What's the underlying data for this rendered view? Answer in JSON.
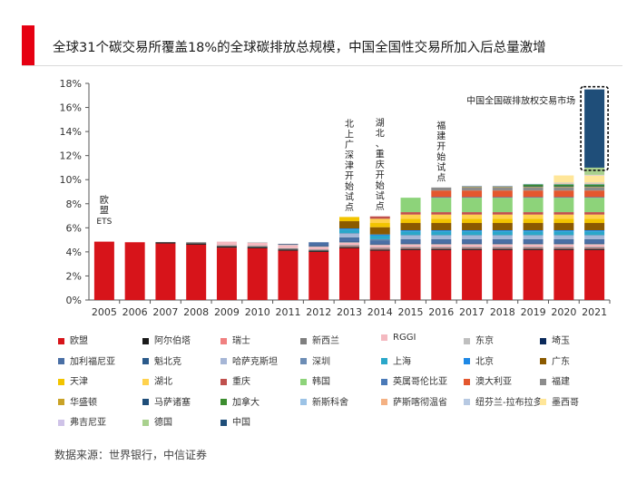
{
  "title": "全球31个碳交易所覆盖18%的全球碳排放总规模，中国全国性交易所加入后总量激增",
  "source": "数据来源：世界银行，中信证券",
  "chart_data": {
    "type": "bar",
    "stacked": true,
    "categories": [
      "2005",
      "2006",
      "2007",
      "2008",
      "2009",
      "2010",
      "2011",
      "2012",
      "2013",
      "2014",
      "2015",
      "2016",
      "2017",
      "2018",
      "2019",
      "2020",
      "2021"
    ],
    "yticks": [
      "0%",
      "2%",
      "4%",
      "6%",
      "8%",
      "10%",
      "12%",
      "14%",
      "16%",
      "18%"
    ],
    "ylim": [
      0,
      18
    ],
    "annotations": [
      {
        "year": "2005",
        "text": "欧盟ETS"
      },
      {
        "year": "2013",
        "text": "北上广深津开始试点"
      },
      {
        "year": "2014",
        "text": "湖北、重庆开始试点"
      },
      {
        "year": "2016",
        "text": "福建开始试点"
      },
      {
        "year": "2021",
        "text": "中国全国碳排放权交易市场"
      }
    ],
    "series": [
      {
        "name": "欧盟",
        "color": "#d7141a",
        "values": [
          4.85,
          4.8,
          4.7,
          4.6,
          4.35,
          4.3,
          4.1,
          4.0,
          4.3,
          4.1,
          4.15,
          4.15,
          4.15,
          4.15,
          4.15,
          4.15,
          4.15
        ]
      },
      {
        "name": "阿尔伯塔",
        "color": "#1a1a1a",
        "values": [
          0,
          0,
          0.1,
          0.1,
          0.1,
          0.1,
          0.1,
          0.1,
          0.1,
          0.1,
          0.1,
          0.1,
          0.1,
          0.1,
          0.1,
          0.1,
          0.1
        ]
      },
      {
        "name": "瑞士",
        "color": "#f08080",
        "values": [
          0,
          0,
          0,
          0,
          0,
          0,
          0,
          0,
          0.05,
          0.05,
          0.05,
          0.05,
          0.05,
          0.05,
          0.05,
          0.05,
          0.05
        ]
      },
      {
        "name": "新西兰",
        "color": "#7f7f7f",
        "values": [
          0,
          0,
          0,
          0.1,
          0.1,
          0.1,
          0.1,
          0.1,
          0.1,
          0.1,
          0.1,
          0.1,
          0.1,
          0.1,
          0.1,
          0.1,
          0.1
        ]
      },
      {
        "name": "RGGI",
        "color": "#f4b9c0",
        "values": [
          0,
          0,
          0,
          0,
          0.3,
          0.25,
          0.25,
          0.2,
          0.2,
          0.2,
          0.2,
          0.2,
          0.2,
          0.2,
          0.2,
          0.2,
          0.2
        ]
      },
      {
        "name": "东京",
        "color": "#bfbfbf",
        "values": [
          0,
          0,
          0,
          0,
          0,
          0.05,
          0.05,
          0.05,
          0.05,
          0.05,
          0.05,
          0.05,
          0.05,
          0.05,
          0.05,
          0.05,
          0.05
        ]
      },
      {
        "name": "埼玉",
        "color": "#0b2a5b",
        "values": [
          0,
          0,
          0,
          0,
          0,
          0,
          0.05,
          0.05,
          0.05,
          0.05,
          0.05,
          0.05,
          0.05,
          0.05,
          0.05,
          0.05,
          0.05
        ]
      },
      {
        "name": "加利福尼亚",
        "color": "#4a6fa5",
        "values": [
          0,
          0,
          0,
          0,
          0,
          0,
          0,
          0.3,
          0.3,
          0.3,
          0.3,
          0.3,
          0.3,
          0.3,
          0.3,
          0.3,
          0.3
        ]
      },
      {
        "name": "魁北克",
        "color": "#2b5a8a",
        "values": [
          0,
          0,
          0,
          0,
          0,
          0,
          0,
          0,
          0.05,
          0.05,
          0.05,
          0.05,
          0.05,
          0.05,
          0.05,
          0.05,
          0.05
        ]
      },
      {
        "name": "哈萨克斯坦",
        "color": "#a6b6d6",
        "values": [
          0,
          0,
          0,
          0,
          0,
          0,
          0,
          0,
          0.3,
          0,
          0.3,
          0.3,
          0.3,
          0.3,
          0.3,
          0.3,
          0.3
        ]
      },
      {
        "name": "深圳",
        "color": "#6d8db5",
        "values": [
          0,
          0,
          0,
          0,
          0,
          0,
          0,
          0,
          0.05,
          0.05,
          0.05,
          0.05,
          0.05,
          0.05,
          0.05,
          0.05,
          0.05
        ]
      },
      {
        "name": "上海",
        "color": "#2aa7c9",
        "values": [
          0,
          0,
          0,
          0,
          0,
          0,
          0,
          0,
          0.3,
          0.3,
          0.3,
          0.3,
          0.3,
          0.3,
          0.3,
          0.3,
          0.3
        ]
      },
      {
        "name": "北京",
        "color": "#1e88e5",
        "values": [
          0,
          0,
          0,
          0,
          0,
          0,
          0,
          0,
          0.1,
          0.1,
          0.1,
          0.1,
          0.1,
          0.1,
          0.1,
          0.1,
          0.1
        ]
      },
      {
        "name": "广东",
        "color": "#8b5a00",
        "values": [
          0,
          0,
          0,
          0,
          0,
          0,
          0,
          0,
          0.6,
          0.6,
          0.6,
          0.6,
          0.6,
          0.6,
          0.6,
          0.6,
          0.6
        ]
      },
      {
        "name": "天津",
        "color": "#f2c400",
        "values": [
          0,
          0,
          0,
          0,
          0,
          0,
          0,
          0,
          0.35,
          0.35,
          0.35,
          0.35,
          0.35,
          0.35,
          0.35,
          0.35,
          0.35
        ]
      },
      {
        "name": "湖北",
        "color": "#ffd24d",
        "values": [
          0,
          0,
          0,
          0,
          0,
          0,
          0,
          0,
          0,
          0.35,
          0.35,
          0.35,
          0.35,
          0.35,
          0.35,
          0.35,
          0.35
        ]
      },
      {
        "name": "重庆",
        "color": "#c0504d",
        "values": [
          0,
          0,
          0,
          0,
          0,
          0,
          0,
          0,
          0,
          0.2,
          0.2,
          0.2,
          0.2,
          0.2,
          0.2,
          0.2,
          0.2
        ]
      },
      {
        "name": "韩国",
        "color": "#8dd37a",
        "values": [
          0,
          0,
          0,
          0,
          0,
          0,
          0,
          0,
          0,
          0,
          1.2,
          1.2,
          1.2,
          1.2,
          1.2,
          1.2,
          1.2
        ]
      },
      {
        "name": "英属哥伦比亚",
        "color": "#4a7ab8",
        "values": [
          0,
          0,
          0,
          0,
          0,
          0,
          0,
          0,
          0,
          0,
          0,
          0.05,
          0.05,
          0.05,
          0.05,
          0.05,
          0.05
        ]
      },
      {
        "name": "澳大利亚",
        "color": "#e4572e",
        "values": [
          0,
          0,
          0,
          0,
          0,
          0,
          0,
          0,
          0,
          0,
          0,
          0.55,
          0.55,
          0.55,
          0.55,
          0.55,
          0.55
        ]
      },
      {
        "name": "福建",
        "color": "#8c8c8c",
        "values": [
          0,
          0,
          0,
          0,
          0,
          0,
          0,
          0,
          0,
          0,
          0,
          0.25,
          0.25,
          0.25,
          0.25,
          0.25,
          0.25
        ]
      },
      {
        "name": "华盛顿",
        "color": "#c9a227",
        "values": [
          0,
          0,
          0,
          0,
          0,
          0,
          0,
          0,
          0,
          0,
          0,
          0,
          0.05,
          0.05,
          0.05,
          0.05,
          0.05
        ]
      },
      {
        "name": "马萨诸塞",
        "color": "#1f4e79",
        "values": [
          0,
          0,
          0,
          0,
          0,
          0,
          0,
          0,
          0,
          0,
          0,
          0,
          0.05,
          0.05,
          0.05,
          0.05,
          0.05
        ]
      },
      {
        "name": "加拿大",
        "color": "#3c8d2f",
        "values": [
          0,
          0,
          0,
          0,
          0,
          0,
          0,
          0,
          0,
          0,
          0,
          0,
          0,
          0,
          0.15,
          0.15,
          0.15
        ]
      },
      {
        "name": "新斯科舍",
        "color": "#9cc3e6",
        "values": [
          0,
          0,
          0,
          0,
          0,
          0,
          0,
          0,
          0,
          0,
          0,
          0,
          0,
          0,
          0.05,
          0.05,
          0.05
        ]
      },
      {
        "name": "萨斯喀彻温省",
        "color": "#f4b183",
        "values": [
          0,
          0,
          0,
          0,
          0,
          0,
          0,
          0,
          0,
          0,
          0,
          0,
          0,
          0,
          0,
          0.05,
          0.05
        ]
      },
      {
        "name": "纽芬兰-拉布拉多",
        "color": "#b7c9e2",
        "values": [
          0,
          0,
          0,
          0,
          0,
          0,
          0,
          0,
          0,
          0,
          0,
          0,
          0,
          0,
          0,
          0.05,
          0.05
        ]
      },
      {
        "name": "墨西哥",
        "color": "#ffe699",
        "values": [
          0,
          0,
          0,
          0,
          0,
          0,
          0,
          0,
          0,
          0,
          0,
          0,
          0,
          0,
          0,
          0.6,
          0.6
        ]
      },
      {
        "name": "弗吉尼亚",
        "color": "#cfc3e8",
        "values": [
          0,
          0,
          0,
          0,
          0,
          0,
          0,
          0,
          0,
          0,
          0,
          0,
          0,
          0,
          0,
          0,
          0.05
        ]
      },
      {
        "name": "德国",
        "color": "#a9d18e",
        "values": [
          0,
          0,
          0,
          0,
          0,
          0,
          0,
          0,
          0,
          0,
          0,
          0,
          0,
          0,
          0,
          0,
          0.6
        ]
      },
      {
        "name": "中国",
        "color": "#1f4e79",
        "values": [
          0,
          0,
          0,
          0,
          0,
          0,
          0,
          0,
          0,
          0,
          0,
          0,
          0,
          0,
          0,
          0,
          6.5
        ]
      }
    ]
  }
}
